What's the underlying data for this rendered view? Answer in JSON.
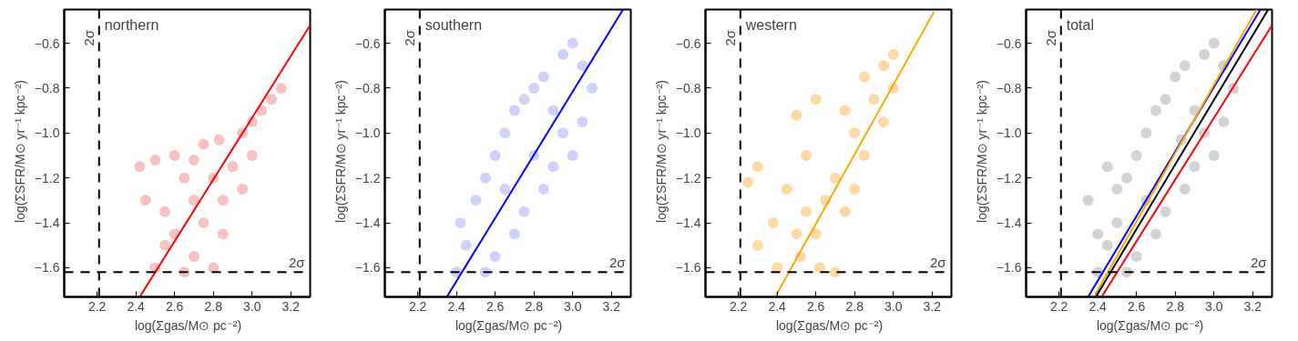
{
  "chart_data": [
    {
      "type": "scatter",
      "title": "northern",
      "xlabel": "log(Σgas/M⊙ pc⁻²)",
      "ylabel": "log(ΣSFR/M⊙ yr⁻¹ kpc⁻²)",
      "xlim": [
        2.03,
        3.3
      ],
      "ylim": [
        -1.73,
        -0.45
      ],
      "xticks": [
        {
          "value": 2.2,
          "label": "2.2"
        },
        {
          "value": 2.4,
          "label": "2.4"
        },
        {
          "value": 2.6,
          "label": "2.6"
        },
        {
          "value": 2.8,
          "label": "2.8"
        },
        {
          "value": 3.0,
          "label": "3.0"
        },
        {
          "value": 3.2,
          "label": "3.2"
        }
      ],
      "yticks": [
        {
          "value": -1.6,
          "label": "−1.6"
        },
        {
          "value": -1.4,
          "label": "−1.4"
        },
        {
          "value": -1.2,
          "label": "−1.2"
        },
        {
          "value": -1.0,
          "label": "−1.0"
        },
        {
          "value": -0.8,
          "label": "−0.8"
        },
        {
          "value": -0.6,
          "label": "−0.6"
        }
      ],
      "ref_lines": [
        {
          "axis": "x",
          "value": 2.21,
          "label": "2σ",
          "line_style": "dashed",
          "color": "#000000"
        },
        {
          "axis": "y",
          "value": -1.62,
          "label": "2σ",
          "line_style": "dashed",
          "color": "#000000"
        }
      ],
      "series": [
        {
          "marker": "circle",
          "color": "#f7b3b3",
          "x": [
            2.5,
            2.55,
            2.6,
            2.55,
            2.45,
            2.42,
            2.5,
            2.6,
            2.7,
            2.65,
            2.7,
            2.75,
            2.7,
            2.8,
            2.85,
            2.85,
            2.83,
            2.9,
            2.95,
            3.0,
            3.05,
            3.1,
            3.15,
            2.95,
            2.8,
            2.75,
            3.0,
            2.65
          ],
          "values": [
            -1.6,
            -1.5,
            -1.45,
            -1.35,
            -1.3,
            -1.15,
            -1.12,
            -1.1,
            -1.12,
            -1.2,
            -1.3,
            -1.4,
            -1.55,
            -1.6,
            -1.45,
            -1.3,
            -1.03,
            -1.15,
            -1.0,
            -0.95,
            -0.9,
            -0.85,
            -0.8,
            -1.25,
            -1.2,
            -1.05,
            -1.1,
            -1.62
          ]
        },
        {
          "type": "line",
          "color": "#ff0000",
          "x": [
            2.42,
            3.3
          ],
          "values": [
            -1.73,
            -0.52
          ]
        }
      ]
    },
    {
      "type": "scatter",
      "title": "southern",
      "xlabel": "log(Σgas/M⊙ pc⁻²)",
      "ylabel": "log(ΣSFR/M⊙ yr⁻¹ kpc⁻²)",
      "xlim": [
        2.03,
        3.3
      ],
      "ylim": [
        -1.73,
        -0.45
      ],
      "xticks": [
        {
          "value": 2.2,
          "label": "2.2"
        },
        {
          "value": 2.4,
          "label": "2.4"
        },
        {
          "value": 2.6,
          "label": "2.6"
        },
        {
          "value": 2.8,
          "label": "2.8"
        },
        {
          "value": 3.0,
          "label": "3.0"
        },
        {
          "value": 3.2,
          "label": "3.2"
        }
      ],
      "yticks": [
        {
          "value": -1.6,
          "label": "−1.6"
        },
        {
          "value": -1.4,
          "label": "−1.4"
        },
        {
          "value": -1.2,
          "label": "−1.2"
        },
        {
          "value": -1.0,
          "label": "−1.0"
        },
        {
          "value": -0.8,
          "label": "−0.8"
        },
        {
          "value": -0.6,
          "label": "−0.6"
        }
      ],
      "ref_lines": [
        {
          "axis": "x",
          "value": 2.21,
          "label": "2σ",
          "line_style": "dashed",
          "color": "#000000"
        },
        {
          "axis": "y",
          "value": -1.62,
          "label": "2σ",
          "line_style": "dashed",
          "color": "#000000"
        }
      ],
      "series": [
        {
          "marker": "circle",
          "color": "#c3c8f7",
          "x": [
            2.4,
            2.45,
            2.42,
            2.5,
            2.55,
            2.6,
            2.65,
            2.7,
            2.75,
            2.8,
            2.85,
            2.95,
            3.0,
            3.05,
            3.1,
            3.05,
            3.0,
            2.95,
            2.9,
            2.85,
            2.75,
            2.7,
            2.6,
            2.55,
            2.8,
            2.65,
            2.9
          ],
          "values": [
            -1.62,
            -1.5,
            -1.4,
            -1.3,
            -1.2,
            -1.1,
            -1.0,
            -0.9,
            -0.85,
            -0.8,
            -0.75,
            -0.65,
            -0.6,
            -0.7,
            -0.8,
            -0.95,
            -1.1,
            -1.0,
            -1.15,
            -1.25,
            -1.35,
            -1.45,
            -1.55,
            -1.62,
            -1.1,
            -1.25,
            -0.9
          ]
        },
        {
          "type": "line",
          "color": "#0000ff",
          "x": [
            2.35,
            3.26
          ],
          "values": [
            -1.73,
            -0.45
          ]
        }
      ]
    },
    {
      "type": "scatter",
      "title": "western",
      "xlabel": "log(Σgas/M⊙ pc⁻²)",
      "ylabel": "log(ΣSFR/M⊙ yr⁻¹ kpc⁻²)",
      "xlim": [
        2.03,
        3.3
      ],
      "ylim": [
        -1.73,
        -0.45
      ],
      "xticks": [
        {
          "value": 2.2,
          "label": "2.2"
        },
        {
          "value": 2.4,
          "label": "2.4"
        },
        {
          "value": 2.6,
          "label": "2.6"
        },
        {
          "value": 2.8,
          "label": "2.8"
        },
        {
          "value": 3.0,
          "label": "3.0"
        },
        {
          "value": 3.2,
          "label": "3.2"
        }
      ],
      "yticks": [
        {
          "value": -1.6,
          "label": "−1.6"
        },
        {
          "value": -1.4,
          "label": "−1.4"
        },
        {
          "value": -1.2,
          "label": "−1.2"
        },
        {
          "value": -1.0,
          "label": "−1.0"
        },
        {
          "value": -0.8,
          "label": "−0.8"
        },
        {
          "value": -0.6,
          "label": "−0.6"
        }
      ],
      "ref_lines": [
        {
          "axis": "x",
          "value": 2.21,
          "label": "2σ",
          "line_style": "dashed",
          "color": "#000000"
        },
        {
          "axis": "y",
          "value": -1.62,
          "label": "2σ",
          "line_style": "dashed",
          "color": "#000000"
        }
      ],
      "series": [
        {
          "marker": "circle",
          "color": "#fdd08f",
          "x": [
            2.25,
            2.3,
            2.3,
            2.38,
            2.4,
            2.45,
            2.5,
            2.52,
            2.55,
            2.6,
            2.62,
            2.65,
            2.7,
            2.75,
            2.8,
            2.8,
            2.75,
            2.85,
            2.9,
            2.95,
            2.95,
            3.0,
            3.0,
            2.85,
            2.6,
            2.5,
            2.55,
            2.7
          ],
          "values": [
            -1.22,
            -1.15,
            -1.5,
            -1.4,
            -1.6,
            -1.25,
            -1.45,
            -1.55,
            -1.35,
            -1.45,
            -1.6,
            -1.3,
            -1.2,
            -1.35,
            -1.25,
            -1.0,
            -0.9,
            -1.1,
            -0.85,
            -0.95,
            -0.7,
            -0.65,
            -0.8,
            -0.75,
            -0.85,
            -0.92,
            -1.1,
            -1.62
          ]
        },
        {
          "type": "line",
          "color": "#ffa500",
          "x": [
            2.39,
            3.21
          ],
          "values": [
            -1.73,
            -0.46
          ]
        }
      ]
    },
    {
      "type": "scatter",
      "title": "total",
      "xlabel": "log(Σgas/M⊙ pc⁻²)",
      "ylabel": "log(ΣSFR/M⊙ yr⁻¹ kpc⁻²)",
      "xlim": [
        2.03,
        3.3
      ],
      "ylim": [
        -1.73,
        -0.45
      ],
      "xticks": [
        {
          "value": 2.2,
          "label": "2.2"
        },
        {
          "value": 2.4,
          "label": "2.4"
        },
        {
          "value": 2.6,
          "label": "2.6"
        },
        {
          "value": 2.8,
          "label": "2.8"
        },
        {
          "value": 3.0,
          "label": "3.0"
        },
        {
          "value": 3.2,
          "label": "3.2"
        }
      ],
      "yticks": [
        {
          "value": -1.6,
          "label": "−1.6"
        },
        {
          "value": -1.4,
          "label": "−1.4"
        },
        {
          "value": -1.2,
          "label": "−1.2"
        },
        {
          "value": -1.0,
          "label": "−1.0"
        },
        {
          "value": -0.8,
          "label": "−0.8"
        },
        {
          "value": -0.6,
          "label": "−0.6"
        }
      ],
      "ref_lines": [
        {
          "axis": "x",
          "value": 2.21,
          "label": "2σ",
          "line_style": "dashed",
          "color": "#000000"
        },
        {
          "axis": "y",
          "value": -1.62,
          "label": "2σ",
          "line_style": "dashed",
          "color": "#000000"
        }
      ],
      "series": [
        {
          "marker": "circle",
          "color": "#c8c8c8",
          "x": [
            2.35,
            2.4,
            2.45,
            2.5,
            2.55,
            2.6,
            2.65,
            2.7,
            2.75,
            2.8,
            2.85,
            2.95,
            3.0,
            3.05,
            3.1,
            3.05,
            3.0,
            2.95,
            2.9,
            2.85,
            2.75,
            2.7,
            2.6,
            2.55,
            2.83,
            2.45,
            2.5,
            2.65,
            2.9,
            2.4
          ],
          "values": [
            -1.3,
            -1.62,
            -1.5,
            -1.4,
            -1.2,
            -1.1,
            -1.0,
            -0.9,
            -0.85,
            -0.75,
            -0.7,
            -0.65,
            -0.6,
            -0.7,
            -0.8,
            -0.95,
            -1.1,
            -1.0,
            -1.15,
            -1.25,
            -1.35,
            -1.45,
            -1.55,
            -1.62,
            -1.03,
            -1.15,
            -1.25,
            -1.3,
            -0.9,
            -1.45
          ]
        },
        {
          "type": "line",
          "color": "#0000ff",
          "x": [
            2.35,
            3.24
          ],
          "values": [
            -1.73,
            -0.45
          ]
        },
        {
          "type": "line",
          "color": "#ffa500",
          "x": [
            2.38,
            3.22
          ],
          "values": [
            -1.73,
            -0.45
          ]
        },
        {
          "type": "line",
          "color": "#000000",
          "x": [
            2.39,
            3.28
          ],
          "values": [
            -1.73,
            -0.45
          ]
        },
        {
          "type": "line",
          "color": "#ff0000",
          "x": [
            2.42,
            3.3
          ],
          "values": [
            -1.73,
            -0.52
          ]
        }
      ]
    }
  ]
}
